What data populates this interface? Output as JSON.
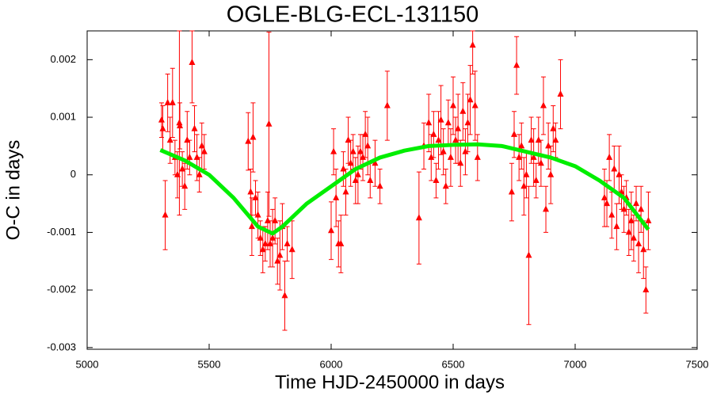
{
  "chart_data": {
    "type": "scatter",
    "title": "OGLE-BLG-ECL-131150",
    "x_label": "Time HJD-2450000 in days",
    "y_label": "O-C in days",
    "xlim": [
      5000,
      7500
    ],
    "xticks": [
      5000,
      5500,
      6000,
      6500,
      7000,
      7500
    ],
    "ylim": [
      -0.00303,
      0.0025
    ],
    "yticks": [
      0.002,
      0.001,
      0,
      -0.001,
      -0.002,
      -0.003
    ],
    "series": [
      {
        "color": "#ff0000",
        "marker": "triangle",
        "x": [
          5305,
          5310,
          5320,
          5330,
          5340,
          5350,
          5360,
          5370,
          5378,
          5380,
          5390,
          5400,
          5410,
          5420,
          5430,
          5440,
          5450,
          5460,
          5470,
          5480,
          5660,
          5670,
          5675,
          5680,
          5690,
          5700,
          5710,
          5720,
          5730,
          5740,
          5745,
          5750,
          5760,
          5770,
          5780,
          5790,
          5800,
          5810,
          5820,
          5840,
          6000,
          6010,
          6020,
          6030,
          6040,
          6050,
          6060,
          6070,
          6080,
          6090,
          6100,
          6110,
          6120,
          6130,
          6140,
          6150,
          6160,
          6180,
          6200,
          6230,
          6360,
          6380,
          6400,
          6410,
          6420,
          6430,
          6440,
          6450,
          6460,
          6470,
          6480,
          6490,
          6500,
          6510,
          6520,
          6530,
          6540,
          6550,
          6560,
          6570,
          6580,
          6590,
          6600,
          6740,
          6750,
          6760,
          6770,
          6780,
          6790,
          6800,
          6810,
          6820,
          6830,
          6840,
          6850,
          6860,
          6870,
          6880,
          6890,
          6900,
          6910,
          6920,
          6940,
          7120,
          7130,
          7140,
          7150,
          7160,
          7170,
          7180,
          7190,
          7200,
          7210,
          7220,
          7230,
          7240,
          7250,
          7260,
          7270,
          7280,
          7290,
          7300
        ],
        "values": [
          0.00095,
          0.0008,
          -0.0007,
          0.00125,
          0.0006,
          0.00125,
          0.0003,
          0,
          0.0009,
          0.00085,
          0.0001,
          -0.0002,
          0.0006,
          0.0003,
          0.00195,
          0.0008,
          0.0003,
          0,
          0.0005,
          0.0004,
          0.00058,
          -0.0003,
          -0.0009,
          0.00065,
          -0.0004,
          -0.0007,
          -0.0011,
          -0.0013,
          -0.0012,
          -0.0008,
          0.00088,
          -0.0012,
          -0.0011,
          -0.0008,
          -0.0015,
          -0.0014,
          -0.0009,
          -0.0021,
          -0.0012,
          -0.0013,
          -0.00097,
          0.0004,
          -0.0004,
          -0.0012,
          -0.0012,
          0.0001,
          -0.0003,
          0.0006,
          0.0002,
          0.0004,
          -0.0001,
          0,
          0.0004,
          0.0003,
          0.0007,
          0.0005,
          -0.0001,
          0.0002,
          -0.0002,
          0.0012,
          -0.00075,
          0.0005,
          0.0009,
          0.0003,
          0.0007,
          -0.0001,
          0.0006,
          0.00095,
          0.0004,
          -0.0002,
          0.0009,
          0.0003,
          0.0012,
          0.0006,
          0.0008,
          0.0002,
          0.0011,
          0.0004,
          0.0009,
          0.0013,
          0.00225,
          0.0012,
          0.0003,
          -0.0003,
          0.0007,
          0.0019,
          0.0003,
          0.0005,
          -0.0002,
          0,
          -0.0014,
          0.0006,
          0.0003,
          -0.0001,
          0.0006,
          0.0002,
          0.0012,
          -0.0006,
          0.0005,
          0,
          0.0008,
          0.0006,
          0.0014,
          -0.0004,
          -0.0005,
          0.0003,
          -0.0007,
          0.0001,
          -0.0009,
          0,
          -0.0003,
          -0.0006,
          -0.0004,
          -0.001,
          -0.0008,
          -0.0011,
          -0.0005,
          -0.0012,
          -0.0006,
          -0.0013,
          -0.002,
          -0.0008
        ],
        "errors": [
          0.0003,
          0.0004,
          0.0006,
          0.0005,
          0.0004,
          0.0006,
          0.0003,
          0.0004,
          0.0016,
          0.0004,
          0.0003,
          0.0004,
          0.0005,
          0.0003,
          0.0007,
          0.0004,
          0.0004,
          0.0003,
          0.0004,
          0.0003,
          0.0005,
          0.0004,
          0.0005,
          0.0006,
          0.0003,
          0.0004,
          0.0003,
          0.0004,
          0.0003,
          0.0005,
          0.0016,
          0.0004,
          0.0005,
          0.0004,
          0.0004,
          0.0006,
          0.0004,
          0.0006,
          0.0003,
          0.0005,
          0.0005,
          0.0004,
          0.0005,
          0.0004,
          0.0005,
          0.0003,
          0.0004,
          0.0004,
          0.0004,
          0.0003,
          0.0004,
          0.0005,
          0.0003,
          0.0004,
          0.0004,
          0.0005,
          0.0003,
          0.0004,
          0.0003,
          0.0006,
          0.0008,
          0.0004,
          0.0005,
          0.0004,
          0.0004,
          0.0003,
          0.0005,
          0.0006,
          0.0004,
          0.0003,
          0.0004,
          0.0005,
          0.0005,
          0.0004,
          0.0006,
          0.0004,
          0.0005,
          0.0004,
          0.0005,
          0.0006,
          0.0005,
          0.0006,
          0.0004,
          0.0005,
          0.0004,
          0.0005,
          0.0004,
          0.0004,
          0.0005,
          0.0004,
          0.0012,
          0.0004,
          0.0005,
          0.0003,
          0.0004,
          0.0004,
          0.0005,
          0.0004,
          0.0004,
          0.0005,
          0.0004,
          0.0003,
          0.0006,
          0.0005,
          0.0004,
          0.0004,
          0.0004,
          0.0004,
          0.0004,
          0.0005,
          0.0003,
          0.0004,
          0.0003,
          0.0004,
          0.0005,
          0.0004,
          0.0003,
          0.0005,
          0.0004,
          0.0005,
          0.0004,
          0.0005
        ]
      },
      {
        "color": "#00ee00",
        "style": "line",
        "x": [
          5300,
          5400,
          5500,
          5600,
          5700,
          5760,
          5800,
          5900,
          6000,
          6100,
          6200,
          6300,
          6400,
          6500,
          6600,
          6700,
          6800,
          6900,
          7000,
          7100,
          7200,
          7300
        ],
        "values": [
          0.00043,
          0.00025,
          0,
          -0.0004,
          -0.0009,
          -0.00102,
          -0.0009,
          -0.0005,
          -0.0002,
          0.0001,
          0.0003,
          0.00042,
          0.0005,
          0.00052,
          0.00053,
          0.0005,
          0.0004,
          0.0003,
          0.00015,
          -0.0001,
          -0.0004,
          -0.00095
        ]
      }
    ]
  }
}
